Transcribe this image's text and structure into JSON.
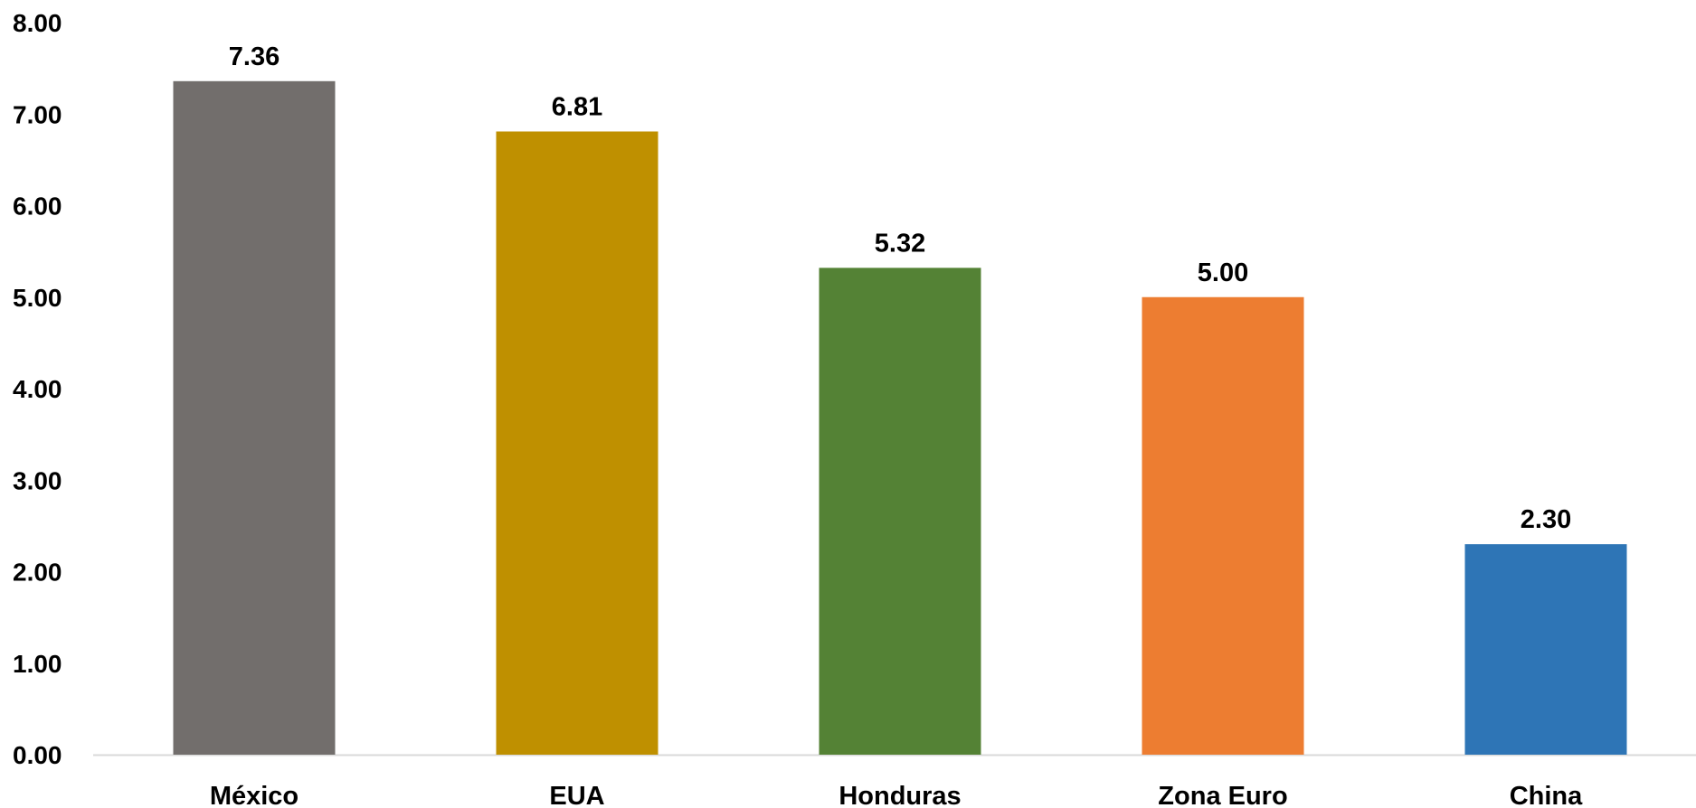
{
  "chart_data": {
    "type": "bar",
    "categories": [
      "México",
      "EUA",
      "Honduras",
      "Zona Euro",
      "China"
    ],
    "values": [
      7.36,
      6.81,
      5.32,
      5.0,
      2.3
    ],
    "value_labels": [
      "7.36",
      "6.81",
      "5.32",
      "5.00",
      "2.30"
    ],
    "colors": [
      "#726e6c",
      "#bf9000",
      "#548235",
      "#ed7d31",
      "#2e75b6"
    ],
    "title": "",
    "xlabel": "",
    "ylabel": "",
    "ylim": [
      0,
      8
    ],
    "yticks": [
      0,
      1,
      2,
      3,
      4,
      5,
      6,
      7,
      8
    ],
    "ytick_labels": [
      "0.00",
      "1.00",
      "2.00",
      "3.00",
      "4.00",
      "5.00",
      "6.00",
      "7.00",
      "8.00"
    ],
    "grid": false,
    "legend": "none",
    "axis_color": "#d9d9d9"
  }
}
